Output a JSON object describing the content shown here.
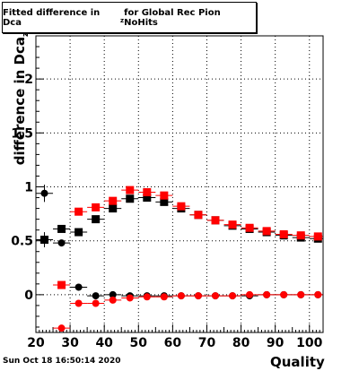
{
  "title": {
    "prefix": "Fitted difference in Dca",
    "subscript": "z",
    "suffix": " for Global Rec Pion NoHits"
  },
  "footer": "Sun Oct 18 16:50:14 2020",
  "axis_labels": {
    "x": "Quality",
    "y_prefix": "difference in Dca",
    "y_subscript": "z"
  },
  "chart_data": {
    "type": "scatter",
    "grid": true,
    "xlim": [
      20,
      104
    ],
    "ylim": [
      -0.35,
      2.4
    ],
    "x_ticks": [
      "20",
      "30",
      "40",
      "50",
      "60",
      "70",
      "80",
      "90",
      "100"
    ],
    "y_ticks": [
      "0",
      "0.5",
      "1",
      "1.5",
      "2"
    ],
    "colors": {
      "black_series": "#000000",
      "red_series": "#ff0000"
    },
    "series": [
      {
        "marker": "square",
        "color": "#000000",
        "points": [
          [
            22.5,
            0.51
          ],
          [
            27.5,
            0.61
          ],
          [
            32.5,
            0.58
          ],
          [
            37.5,
            0.7
          ],
          [
            42.5,
            0.8
          ],
          [
            47.5,
            0.89
          ],
          [
            52.5,
            0.9
          ],
          [
            57.5,
            0.86
          ],
          [
            62.5,
            0.8
          ],
          [
            67.5,
            0.74
          ],
          [
            72.5,
            0.69
          ],
          [
            77.5,
            0.64
          ],
          [
            82.5,
            0.61
          ],
          [
            87.5,
            0.58
          ],
          [
            92.5,
            0.55
          ],
          [
            97.5,
            0.53
          ],
          [
            102.5,
            0.52
          ]
        ]
      },
      {
        "marker": "square",
        "color": "#ff0000",
        "points": [
          [
            27.5,
            0.09
          ],
          [
            32.5,
            0.77
          ],
          [
            37.5,
            0.81
          ],
          [
            42.5,
            0.87
          ],
          [
            47.5,
            0.97
          ],
          [
            52.5,
            0.95
          ],
          [
            57.5,
            0.92
          ],
          [
            62.5,
            0.82
          ],
          [
            67.5,
            0.74
          ],
          [
            72.5,
            0.69
          ],
          [
            77.5,
            0.65
          ],
          [
            82.5,
            0.62
          ],
          [
            87.5,
            0.59
          ],
          [
            92.5,
            0.56
          ],
          [
            97.5,
            0.55
          ],
          [
            102.5,
            0.54
          ]
        ]
      },
      {
        "marker": "circle",
        "color": "#000000",
        "points": [
          [
            22.5,
            0.94
          ],
          [
            27.5,
            0.48
          ],
          [
            32.5,
            0.07
          ],
          [
            37.5,
            -0.01
          ],
          [
            42.5,
            0.0
          ],
          [
            47.5,
            -0.01
          ],
          [
            52.5,
            -0.01
          ],
          [
            57.5,
            -0.01
          ],
          [
            62.5,
            -0.01
          ],
          [
            67.5,
            -0.01
          ],
          [
            72.5,
            -0.01
          ],
          [
            77.5,
            -0.01
          ],
          [
            82.5,
            -0.01
          ],
          [
            87.5,
            0.0
          ],
          [
            92.5,
            0.0
          ],
          [
            97.5,
            0.0
          ],
          [
            102.5,
            0.0
          ]
        ]
      },
      {
        "marker": "circle",
        "color": "#ff0000",
        "points": [
          [
            27.5,
            -0.31
          ],
          [
            32.5,
            -0.08
          ],
          [
            37.5,
            -0.08
          ],
          [
            42.5,
            -0.05
          ],
          [
            47.5,
            -0.03
          ],
          [
            52.5,
            -0.02
          ],
          [
            57.5,
            -0.02
          ],
          [
            62.5,
            -0.01
          ],
          [
            67.5,
            -0.01
          ],
          [
            72.5,
            -0.01
          ],
          [
            77.5,
            -0.01
          ],
          [
            82.5,
            0.0
          ],
          [
            87.5,
            0.0
          ],
          [
            92.5,
            0.0
          ],
          [
            97.5,
            0.0
          ],
          [
            102.5,
            0.0
          ]
        ]
      }
    ]
  }
}
